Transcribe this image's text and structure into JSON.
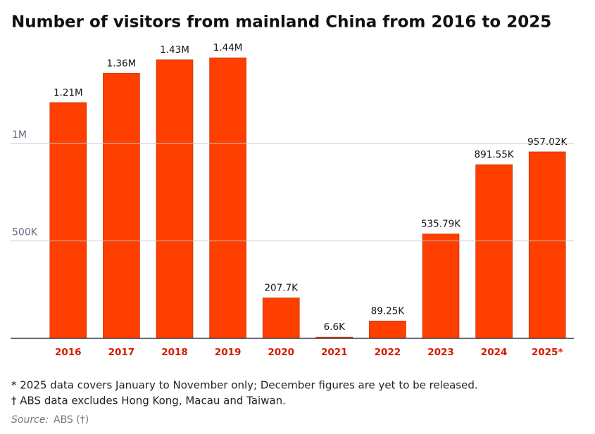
{
  "chart_data": {
    "type": "bar",
    "title": "Number of visitors from mainland China from 2016 to 2025",
    "categories": [
      "2016",
      "2017",
      "2018",
      "2019",
      "2020",
      "2021",
      "2022",
      "2023",
      "2024",
      "2025*"
    ],
    "values": [
      1210000,
      1360000,
      1430000,
      1440000,
      207700,
      6600,
      89250,
      535790,
      891550,
      957020
    ],
    "value_labels": [
      "1.21M",
      "1.36M",
      "1.43M",
      "1.44M",
      "207.7K",
      "6.6K",
      "89.25K",
      "535.79K",
      "891.55K",
      "957.02K"
    ],
    "color": "#ff3f00",
    "ylim": [
      0,
      1500000
    ],
    "yticks": [
      {
        "value": 500000,
        "label": "500K"
      },
      {
        "value": 1000000,
        "label": "1M"
      }
    ],
    "grid": true,
    "notes": [
      "* 2025 data covers January to November only; December figures are yet to be released.",
      "† ABS data excludes Hong Kong, Macau and Taiwan."
    ],
    "source_label": "Source:",
    "source": "ABS (†)"
  }
}
